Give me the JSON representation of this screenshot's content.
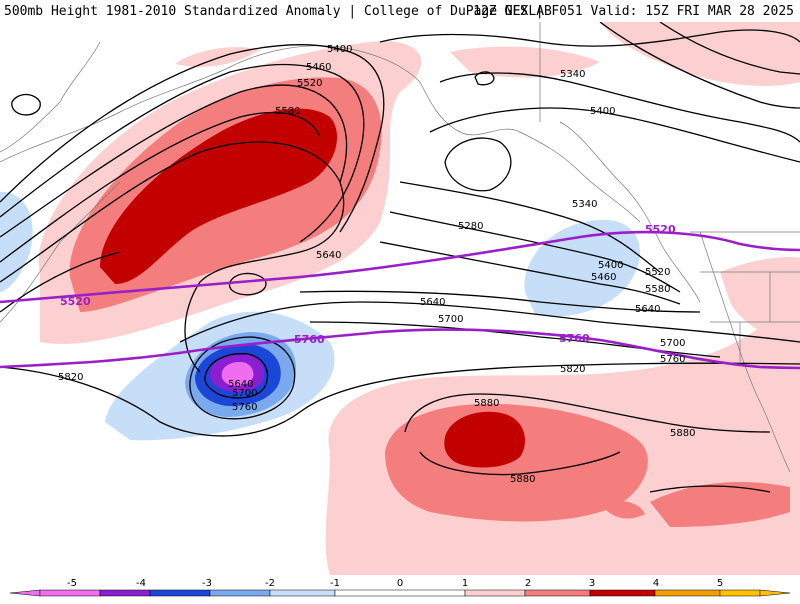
{
  "header": {
    "left": "500mb Height 1981-2010 Standardized Anomaly | College of DuPage NEXLAB",
    "right": "12Z GFS | F051 Valid: 15Z FRI MAR 28 2025"
  },
  "contour_labels": {
    "c5400a": "5400",
    "c5460a": "5460",
    "c5520a": "5520",
    "c5580a": "5580",
    "c5640a": "5640",
    "c5340b": "5340",
    "c5400b": "5400",
    "c5280": "5280",
    "c5340c": "5340",
    "c5400c": "5400",
    "c5460c": "5460",
    "c5520c": "5520",
    "c5580c": "5580",
    "c5640c": "5640",
    "c5640d": "5640",
    "c5700a": "5700",
    "c5700c": "5700",
    "c5760c": "5760",
    "c5820a": "5820",
    "c5820c": "5820",
    "c5640low": "5640",
    "c5700low": "5700",
    "c5760low": "5760",
    "c5880a": "5880",
    "c5880b": "5880",
    "c5880c": "5880"
  },
  "highlight_labels": {
    "p5520w": "5520",
    "p5520e": "5520",
    "p5760w": "5760",
    "p5760e": "5760"
  },
  "colors": {
    "pos1": "#fcd0d0",
    "pos2": "#f47e7e",
    "pos3": "#c30000",
    "neg1": "#c6def8",
    "neg2": "#7aa9ee",
    "neg3": "#1c46d8",
    "neg4": "#8c1ed2",
    "neg5": "#f06df0",
    "highlight": "#9a1fc8"
  },
  "colorbar": {
    "ticks": [
      "-5",
      "-4",
      "-3",
      "-2",
      "-1",
      "0",
      "1",
      "2",
      "3",
      "4",
      "5"
    ]
  }
}
